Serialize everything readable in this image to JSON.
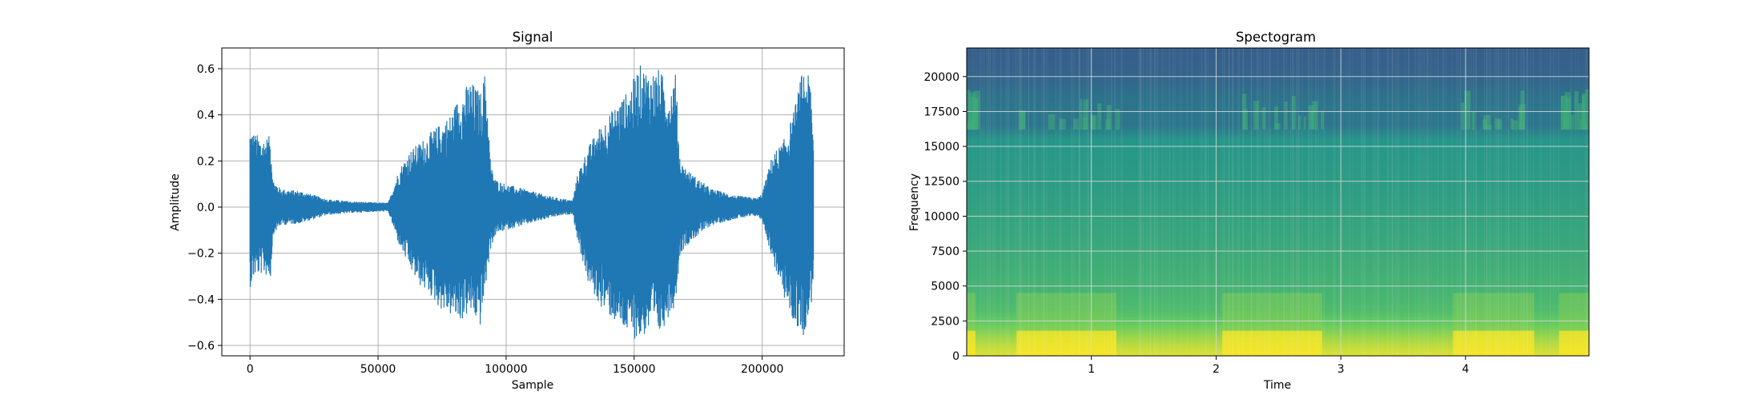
{
  "chart_data": [
    {
      "type": "line",
      "title": "Signal",
      "xlabel": "Sample",
      "ylabel": "Amplitude",
      "xlim": [
        -11000,
        232000
      ],
      "ylim": [
        -0.645,
        0.69
      ],
      "xticks": [
        0,
        50000,
        100000,
        150000,
        200000
      ],
      "xtick_labels": [
        "0",
        "50000",
        "100000",
        "150000",
        "200000"
      ],
      "yticks": [
        -0.6,
        -0.4,
        -0.2,
        0.0,
        0.2,
        0.4,
        0.6
      ],
      "ytick_labels": [
        "−0.6",
        "−0.4",
        "−0.2",
        "0.0",
        "0.2",
        "0.4",
        "0.6"
      ],
      "grid": true,
      "line_color": "#1f77b4",
      "envelope": {
        "description_none": "",
        "x": [
          0,
          2000,
          5000,
          8000,
          9000,
          12000,
          20000,
          30000,
          40000,
          50000,
          54000,
          58000,
          62000,
          66000,
          70000,
          74000,
          78000,
          82000,
          86000,
          90000,
          92000,
          94000,
          96000,
          100000,
          110000,
          120000,
          126000,
          128000,
          132000,
          136000,
          140000,
          144000,
          148000,
          152000,
          156000,
          160000,
          164000,
          166000,
          168000,
          172000,
          180000,
          190000,
          198000,
          200000,
          204000,
          208000,
          212000,
          216000,
          219000,
          220000
        ],
        "upper": [
          0.35,
          0.32,
          0.3,
          0.31,
          0.12,
          0.08,
          0.07,
          0.035,
          0.025,
          0.02,
          0.02,
          0.16,
          0.24,
          0.28,
          0.32,
          0.36,
          0.4,
          0.49,
          0.55,
          0.5,
          0.6,
          0.18,
          0.12,
          0.1,
          0.07,
          0.04,
          0.03,
          0.15,
          0.26,
          0.34,
          0.4,
          0.46,
          0.51,
          0.62,
          0.59,
          0.6,
          0.5,
          0.61,
          0.2,
          0.15,
          0.08,
          0.05,
          0.04,
          0.06,
          0.23,
          0.28,
          0.4,
          0.61,
          0.55,
          0.3
        ],
        "lower": [
          -0.35,
          -0.3,
          -0.29,
          -0.31,
          -0.12,
          -0.08,
          -0.07,
          -0.035,
          -0.025,
          -0.02,
          -0.02,
          -0.16,
          -0.26,
          -0.34,
          -0.38,
          -0.44,
          -0.47,
          -0.5,
          -0.46,
          -0.52,
          -0.35,
          -0.18,
          -0.12,
          -0.1,
          -0.07,
          -0.04,
          -0.03,
          -0.15,
          -0.33,
          -0.42,
          -0.47,
          -0.52,
          -0.56,
          -0.58,
          -0.54,
          -0.56,
          -0.46,
          -0.43,
          -0.2,
          -0.15,
          -0.08,
          -0.05,
          -0.04,
          -0.06,
          -0.23,
          -0.38,
          -0.5,
          -0.56,
          -0.45,
          -0.3
        ]
      }
    },
    {
      "type": "heatmap",
      "title": "Spectogram",
      "xlabel": "Time",
      "ylabel": "Frequency",
      "xlim": [
        0,
        4.99
      ],
      "ylim": [
        0,
        22050
      ],
      "xticks": [
        1,
        2,
        3,
        4
      ],
      "xtick_labels": [
        "1",
        "2",
        "3",
        "4"
      ],
      "yticks": [
        0,
        2500,
        5000,
        7500,
        10000,
        12500,
        15000,
        17500,
        20000
      ],
      "ytick_labels": [
        "0",
        "2500",
        "5000",
        "7500",
        "10000",
        "12500",
        "15000",
        "17500",
        "20000"
      ],
      "grid": true,
      "colormap": "viridis",
      "colormap_colors": [
        "#440154",
        "#3b528b",
        "#21918c",
        "#5ec962",
        "#fde725"
      ],
      "intensity_rows": {
        "freq": [
          0,
          1000,
          2000,
          3000,
          4000,
          5500,
          8000,
          12000,
          15500,
          16200,
          17000,
          18500,
          20000,
          22050
        ],
        "level": [
          0.95,
          0.88,
          0.78,
          0.7,
          0.66,
          0.64,
          0.6,
          0.55,
          0.52,
          0.38,
          0.4,
          0.38,
          0.32,
          0.3
        ]
      },
      "active_segments": [
        [
          0.0,
          0.07
        ],
        [
          0.4,
          1.2
        ],
        [
          2.05,
          2.85
        ],
        [
          3.9,
          4.55
        ],
        [
          4.75,
          4.99
        ]
      ]
    }
  ]
}
